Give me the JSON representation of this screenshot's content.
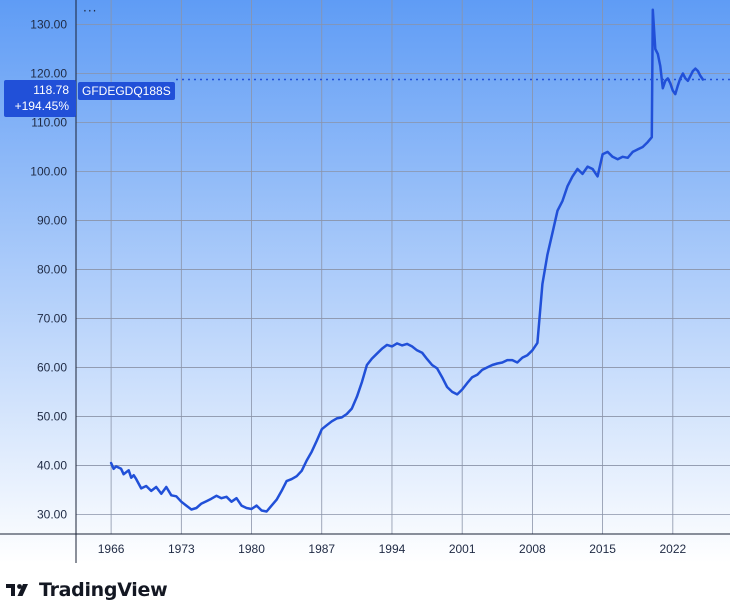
{
  "chart_data": {
    "type": "line",
    "title": "",
    "xlabel": "",
    "ylabel": "",
    "symbol": "GFDEGDQ188S",
    "last_value_label": "118.78",
    "change_label": "+194.45%",
    "ylim": [
      26,
      135
    ],
    "xlim": [
      1962.5,
      2027.7
    ],
    "yticks": [
      "30.00",
      "40.00",
      "50.00",
      "60.00",
      "70.00",
      "80.00",
      "90.00",
      "100.00",
      "110.00",
      "120.00",
      "130.00"
    ],
    "ytick_values": [
      30,
      40,
      50,
      60,
      70,
      80,
      90,
      100,
      110,
      120,
      130
    ],
    "xticks": [
      "1966",
      "1973",
      "1980",
      "1987",
      "1994",
      "2001",
      "2008",
      "2015",
      "2022"
    ],
    "xtick_values": [
      1966,
      1973,
      1980,
      1987,
      1994,
      2001,
      2008,
      2015,
      2022
    ],
    "grid": true,
    "series": [
      {
        "name": "",
        "color": "#2150d8",
        "x": [
          1966.0,
          1966.25,
          1966.5,
          1967.0,
          1967.25,
          1967.75,
          1968.0,
          1968.25,
          1968.5,
          1969.0,
          1969.5,
          1970.0,
          1970.5,
          1971.0,
          1971.5,
          1972.0,
          1972.5,
          1973.0,
          1973.5,
          1974.0,
          1974.5,
          1975.0,
          1975.5,
          1976.0,
          1976.5,
          1977.0,
          1977.5,
          1978.0,
          1978.5,
          1979.0,
          1979.5,
          1980.0,
          1980.5,
          1981.0,
          1981.5,
          1982.0,
          1982.5,
          1983.0,
          1983.5,
          1984.0,
          1984.5,
          1985.0,
          1985.5,
          1986.0,
          1986.5,
          1987.0,
          1987.5,
          1988.0,
          1988.5,
          1989.0,
          1989.5,
          1990.0,
          1990.5,
          1991.0,
          1991.5,
          1992.0,
          1992.5,
          1993.0,
          1993.5,
          1994.0,
          1994.5,
          1995.0,
          1995.5,
          1996.0,
          1996.5,
          1997.0,
          1997.5,
          1998.0,
          1998.5,
          1999.0,
          1999.5,
          2000.0,
          2000.5,
          2001.0,
          2001.5,
          2002.0,
          2002.5,
          2003.0,
          2003.5,
          2004.0,
          2004.5,
          2005.0,
          2005.5,
          2006.0,
          2006.5,
          2007.0,
          2007.5,
          2008.0,
          2008.5,
          2009.0,
          2009.5,
          2010.0,
          2010.5,
          2011.0,
          2011.5,
          2012.0,
          2012.5,
          2013.0,
          2013.5,
          2014.0,
          2014.5,
          2015.0,
          2015.5,
          2016.0,
          2016.5,
          2017.0,
          2017.5,
          2018.0,
          2018.5,
          2019.0,
          2019.5,
          2019.9,
          2020.0,
          2020.25,
          2020.5,
          2020.75,
          2021.0,
          2021.25,
          2021.5,
          2021.75,
          2022.0,
          2022.25,
          2022.5,
          2022.75,
          2023.0,
          2023.25,
          2023.5,
          2023.75,
          2024.0,
          2024.25,
          2024.5,
          2024.75,
          2025.0
        ],
        "y": [
          40.5,
          39.3,
          39.8,
          39.3,
          38.2,
          39.0,
          37.5,
          38.0,
          37.2,
          35.3,
          35.8,
          34.8,
          35.6,
          34.2,
          35.6,
          33.9,
          33.7,
          32.6,
          31.8,
          31.0,
          31.3,
          32.2,
          32.7,
          33.2,
          33.8,
          33.3,
          33.6,
          32.6,
          33.3,
          31.8,
          31.3,
          31.1,
          31.8,
          30.8,
          30.6,
          31.8,
          33.0,
          34.8,
          36.8,
          37.2,
          37.8,
          38.9,
          41.0,
          42.8,
          45.0,
          47.4,
          48.2,
          49.0,
          49.6,
          49.8,
          50.5,
          51.6,
          54.0,
          57.0,
          60.5,
          61.8,
          62.8,
          63.8,
          64.6,
          64.3,
          64.9,
          64.5,
          64.8,
          64.3,
          63.5,
          63.0,
          61.7,
          60.5,
          59.8,
          58.0,
          56.0,
          55.0,
          54.5,
          55.5,
          56.8,
          58.0,
          58.5,
          59.5,
          60.0,
          60.5,
          60.8,
          61.0,
          61.5,
          61.5,
          61.0,
          62.0,
          62.5,
          63.5,
          65.0,
          77.0,
          83.0,
          87.5,
          92.0,
          94.0,
          97.0,
          99.0,
          100.5,
          99.5,
          101.0,
          100.5,
          99.0,
          103.5,
          104.0,
          103.0,
          102.5,
          103.0,
          102.8,
          104.0,
          104.5,
          105.0,
          106.0,
          107.0,
          133.0,
          125.0,
          124.0,
          121.5,
          117.0,
          118.5,
          119.0,
          118.0,
          116.5,
          115.8,
          117.5,
          119.0,
          120.0,
          119.0,
          118.5,
          119.5,
          120.5,
          121.0,
          120.5,
          119.5,
          118.78
        ]
      }
    ]
  }
}
